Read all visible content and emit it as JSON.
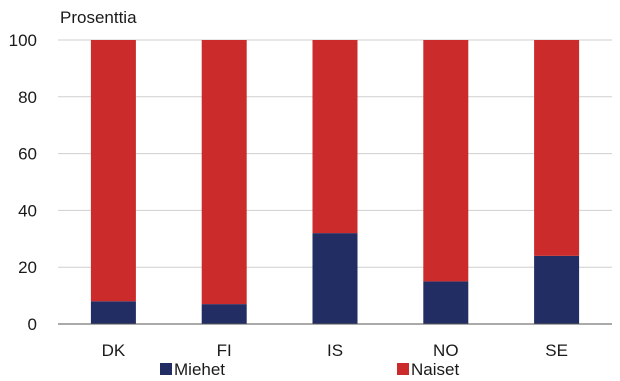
{
  "chart_data": {
    "type": "bar",
    "stacked": true,
    "ylabel": "Prosenttia",
    "xlabel": "",
    "ylim": [
      0,
      100
    ],
    "yticks": [
      0,
      20,
      40,
      60,
      80,
      100
    ],
    "grid": true,
    "legend_position": "bottom",
    "categories": [
      "DK",
      "FI",
      "IS",
      "NO",
      "SE"
    ],
    "series": [
      {
        "name": "Miehet",
        "color": "#222e63",
        "values": [
          8,
          7,
          32,
          15,
          24
        ]
      },
      {
        "name": "Naiset",
        "color": "#cc2b2b",
        "values": [
          92,
          93,
          68,
          85,
          76
        ]
      }
    ]
  }
}
